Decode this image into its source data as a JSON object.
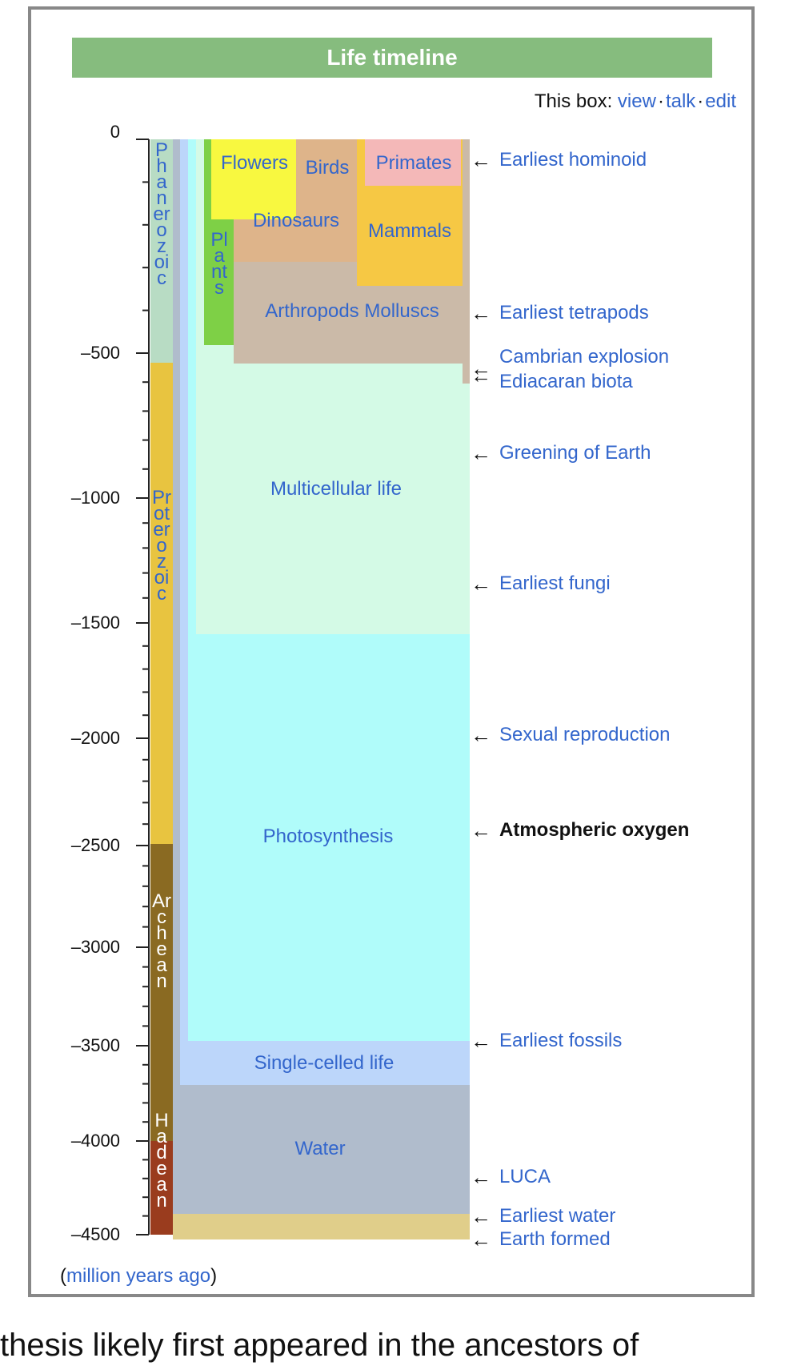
{
  "title": "Life timeline",
  "box_nav": {
    "prefix": "This box:",
    "links": [
      "view",
      "talk",
      "edit"
    ],
    "separator": "·"
  },
  "axis": {
    "ticks": [
      {
        "value": 0,
        "label": "0"
      },
      {
        "value": -500,
        "label": "–500"
      },
      {
        "value": -1000,
        "label": "–1000"
      },
      {
        "value": -1500,
        "label": "–1500"
      },
      {
        "value": -2000,
        "label": "–2000"
      },
      {
        "value": -2500,
        "label": "–2500"
      },
      {
        "value": -3000,
        "label": "–3000"
      },
      {
        "value": -3500,
        "label": "–3500"
      },
      {
        "value": -4000,
        "label": "–4000"
      },
      {
        "value": -4500,
        "label": "–4500"
      }
    ],
    "unit_open": "(",
    "unit_link": "million years ago",
    "unit_close": ")"
  },
  "eons": [
    {
      "name": "Phanerozoic",
      "color": "#b8dcc4",
      "text_color": "#3366cc"
    },
    {
      "name": "Proterozoic",
      "color": "#e8c440",
      "text_color": "#3366cc"
    },
    {
      "name": "Archean",
      "color": "#8a6a22",
      "text_color": "#ffffff"
    },
    {
      "name": "Hadean",
      "color": "#9a3c1e",
      "text_color": "#ffffff"
    }
  ],
  "regions": {
    "flowers": {
      "label": "Flowers",
      "color": "#f8f840"
    },
    "birds": {
      "label": "Birds",
      "color": "#deb48a"
    },
    "primates": {
      "label": "Primates",
      "color": "#f4b8b8"
    },
    "dinosaurs": {
      "label": "Dinosaurs",
      "color": "#deb48a"
    },
    "mammals": {
      "label": "Mammals",
      "color": "#f6c844"
    },
    "plants": {
      "label": "Plants",
      "color": "#7ed046"
    },
    "arthropods": {
      "label": "Arthropods Molluscs",
      "color": "#cbbaa8"
    },
    "multicellular": {
      "label": "Multicellular life",
      "color": "#d4fae6"
    },
    "photosynthesis": {
      "label": "Photosynthesis",
      "color": "#b0fcfa"
    },
    "single_celled": {
      "label": "Single-celled life",
      "color": "#bcd6fa"
    },
    "water": {
      "label": "Water",
      "color": "#b0bccc"
    },
    "earth": {
      "color": "#e0ce8a"
    }
  },
  "events": [
    {
      "label": "Earliest hominoid",
      "bold": false
    },
    {
      "label": "Earliest tetrapods",
      "bold": false
    },
    {
      "label": "Cambrian explosion",
      "bold": false
    },
    {
      "label": "Ediacaran biota",
      "bold": false
    },
    {
      "label": "Greening of Earth",
      "bold": false
    },
    {
      "label": "Earliest fungi",
      "bold": false
    },
    {
      "label": "Sexual reproduction",
      "bold": false
    },
    {
      "label": "Atmospheric oxygen",
      "bold": true
    },
    {
      "label": "Earliest fossils",
      "bold": false
    },
    {
      "label": "LUCA",
      "bold": false
    },
    {
      "label": "Earliest water",
      "bold": false
    },
    {
      "label": "Earth formed",
      "bold": false
    }
  ],
  "arrow_glyph": "←",
  "caption": "thesis likely first appeared in the ancestors of"
}
